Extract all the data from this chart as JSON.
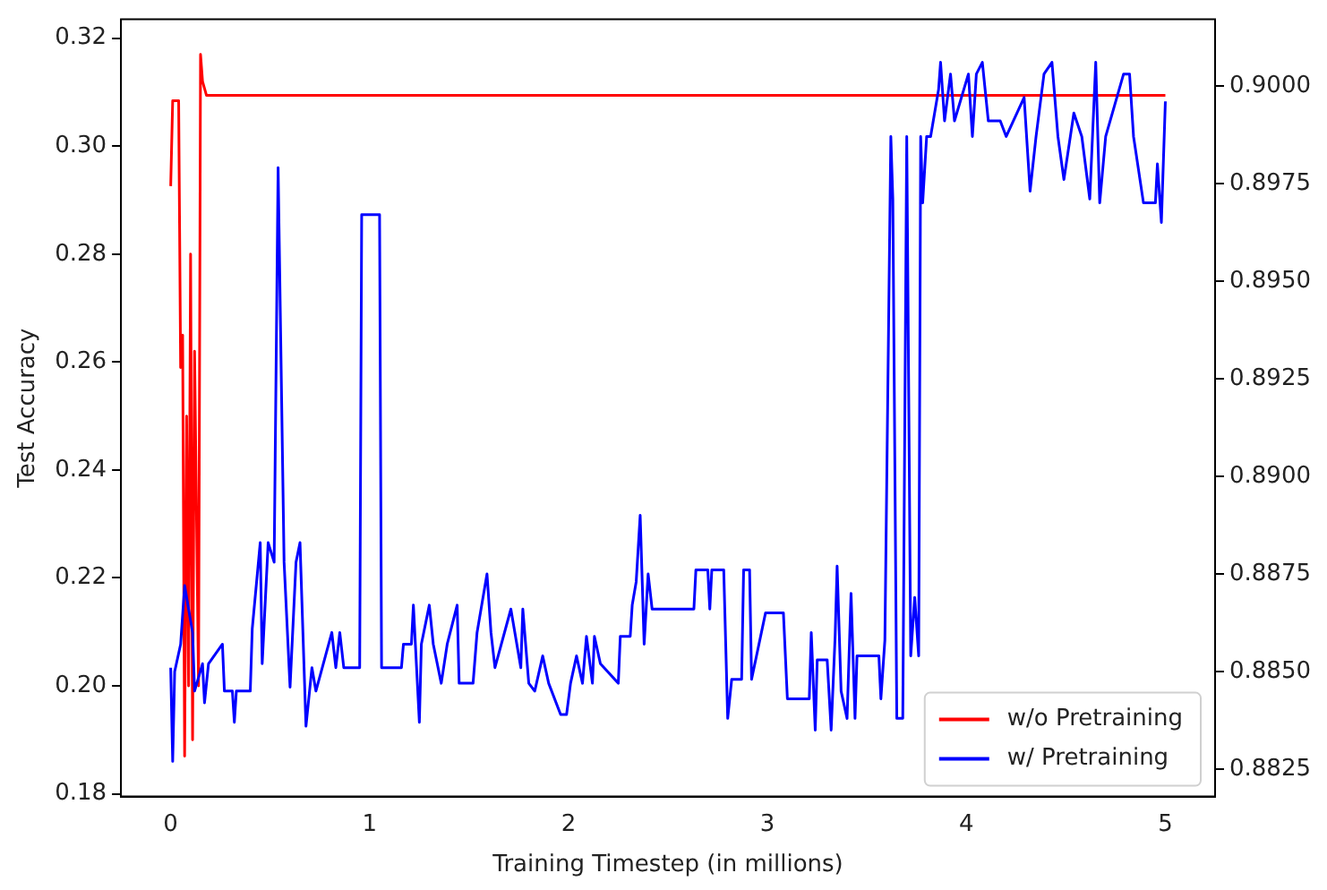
{
  "chart_data": {
    "type": "line",
    "xlabel": "Training Timestep (in millions)",
    "ylabel": "Test Accuracy",
    "xlim": [
      -0.25,
      5.25
    ],
    "xticks": [
      0,
      1,
      2,
      3,
      4,
      5
    ],
    "ylim": [
      0.1795,
      0.3235
    ],
    "yticks": [
      0.18,
      {
        "value": 0.2,
        "label": "0.20"
      },
      0.22,
      0.24,
      0.26,
      0.28,
      {
        "value": 0.3,
        "label": "0.30"
      },
      0.32
    ],
    "y2lim": [
      0.8818,
      0.9017
    ],
    "y2ticks": [
      0.8825,
      {
        "value": 0.885,
        "label": "0.8850"
      },
      0.8875,
      {
        "value": 0.89,
        "label": "0.8900"
      },
      0.8925,
      {
        "value": 0.895,
        "label": "0.8950"
      },
      0.8975,
      {
        "value": 0.9,
        "label": "0.9000"
      }
    ],
    "legend": "bottom right",
    "grid": false,
    "marker": "none",
    "line_style": "solid",
    "series": [
      {
        "name": "w/o Pretraining",
        "color": "#ff0000",
        "x": [
          0,
          0.01,
          0.04,
          0.05,
          0.06,
          0.07,
          0.08,
          0.09,
          0.1,
          0.11,
          0.12,
          0.14,
          0.15,
          0.16,
          0.18,
          5
        ],
        "values": [
          0.2926,
          0.3084,
          0.3084,
          0.259,
          0.265,
          0.187,
          0.25,
          0.2,
          0.28,
          0.19,
          0.262,
          0.2,
          0.317,
          0.312,
          0.3094,
          0.3094
        ]
      },
      {
        "name": "w/ Pretraining",
        "color": "#0000ff",
        "axis": "y2",
        "x": [
          0,
          0.01,
          0.02,
          0.05,
          0.07,
          0.11,
          0.12,
          0.16,
          0.17,
          0.19,
          0.26,
          0.27,
          0.31,
          0.32,
          0.33,
          0.4,
          0.41,
          0.45,
          0.46,
          0.49,
          0.52,
          0.54,
          0.57,
          0.6,
          0.63,
          0.65,
          0.68,
          0.71,
          0.73,
          0.81,
          0.83,
          0.85,
          0.87,
          0.95,
          0.96,
          1.05,
          1.06,
          1.16,
          1.17,
          1.21,
          1.22,
          1.25,
          1.26,
          1.3,
          1.32,
          1.36,
          1.39,
          1.44,
          1.45,
          1.52,
          1.54,
          1.59,
          1.61,
          1.63,
          1.71,
          1.76,
          1.77,
          1.8,
          1.83,
          1.87,
          1.9,
          1.96,
          1.99,
          2.01,
          2.04,
          2.07,
          2.09,
          2.12,
          2.13,
          2.16,
          2.25,
          2.26,
          2.31,
          2.32,
          2.34,
          2.36,
          2.38,
          2.4,
          2.42,
          2.63,
          2.64,
          2.7,
          2.71,
          2.72,
          2.78,
          2.8,
          2.82,
          2.87,
          2.88,
          2.91,
          2.92,
          2.99,
          3.08,
          3.1,
          3.21,
          3.22,
          3.24,
          3.25,
          3.3,
          3.32,
          3.34,
          3.35,
          3.37,
          3.4,
          3.42,
          3.44,
          3.45,
          3.56,
          3.57,
          3.59,
          3.62,
          3.63,
          3.65,
          3.68,
          3.7,
          3.72,
          3.74,
          3.76,
          3.77,
          3.78,
          3.8,
          3.82,
          3.86,
          3.87,
          3.89,
          3.92,
          3.94,
          4.01,
          4.03,
          4.05,
          4.08,
          4.11,
          4.17,
          4.2,
          4.29,
          4.32,
          4.35,
          4.39,
          4.43,
          4.46,
          4.49,
          4.54,
          4.58,
          4.62,
          4.65,
          4.67,
          4.7,
          4.79,
          4.82,
          4.84,
          4.89,
          4.95,
          4.96,
          4.98,
          5
        ],
        "values": [
          0.8851,
          0.8827,
          0.885,
          0.8857,
          0.8872,
          0.886,
          0.8845,
          0.8852,
          0.8842,
          0.8852,
          0.8857,
          0.8845,
          0.8845,
          0.8837,
          0.8845,
          0.8845,
          0.8861,
          0.8883,
          0.8852,
          0.8883,
          0.8878,
          0.8979,
          0.8878,
          0.8846,
          0.8878,
          0.8883,
          0.8836,
          0.8851,
          0.8845,
          0.886,
          0.8851,
          0.886,
          0.8851,
          0.8851,
          0.8967,
          0.8967,
          0.8851,
          0.8851,
          0.8857,
          0.8857,
          0.8867,
          0.8837,
          0.8857,
          0.8867,
          0.8857,
          0.8847,
          0.8857,
          0.8867,
          0.8847,
          0.8847,
          0.886,
          0.8875,
          0.886,
          0.8851,
          0.8866,
          0.8851,
          0.8866,
          0.8847,
          0.8845,
          0.8854,
          0.8847,
          0.8839,
          0.8839,
          0.8847,
          0.8854,
          0.8847,
          0.8859,
          0.8847,
          0.8859,
          0.8852,
          0.8847,
          0.8859,
          0.8859,
          0.8867,
          0.8873,
          0.889,
          0.8857,
          0.8875,
          0.8866,
          0.8866,
          0.8876,
          0.8876,
          0.8866,
          0.8876,
          0.8876,
          0.8838,
          0.8848,
          0.8848,
          0.8876,
          0.8876,
          0.8848,
          0.8865,
          0.8865,
          0.8843,
          0.8843,
          0.886,
          0.8835,
          0.8853,
          0.8853,
          0.8835,
          0.8859,
          0.8877,
          0.8845,
          0.8838,
          0.887,
          0.8838,
          0.8854,
          0.8854,
          0.8843,
          0.8858,
          0.8987,
          0.8971,
          0.8838,
          0.8838,
          0.8987,
          0.8854,
          0.8869,
          0.8854,
          0.8987,
          0.897,
          0.8987,
          0.8987,
          0.8999,
          0.9006,
          0.8991,
          0.9003,
          0.8991,
          0.9003,
          0.8987,
          0.9003,
          0.9006,
          0.8991,
          0.8991,
          0.8987,
          0.8997,
          0.8973,
          0.8987,
          0.9003,
          0.9006,
          0.8987,
          0.8976,
          0.8993,
          0.8987,
          0.8971,
          0.9006,
          0.897,
          0.8987,
          0.9003,
          0.9003,
          0.8987,
          0.897,
          0.897,
          0.898,
          0.8965,
          0.8996
        ]
      }
    ]
  }
}
